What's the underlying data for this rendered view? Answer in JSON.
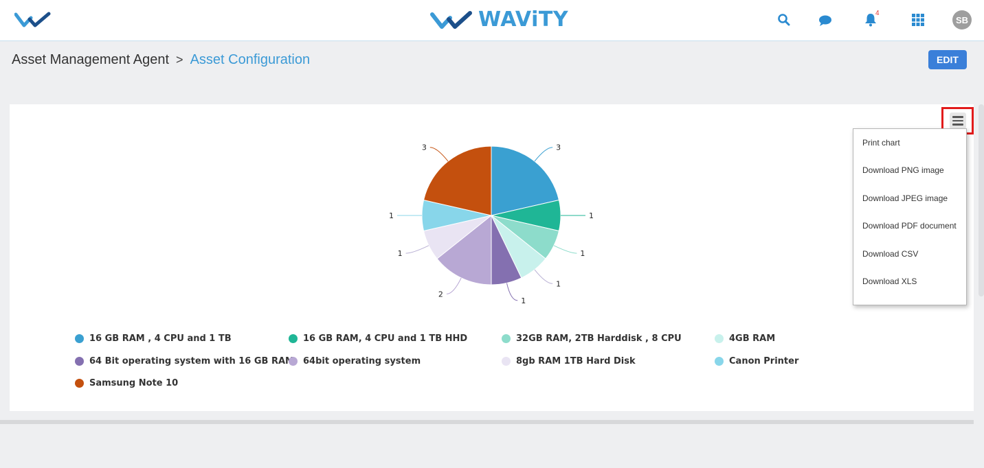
{
  "header": {
    "brand": "WAViTY",
    "notification_count": "4",
    "user_initials": "SB"
  },
  "breadcrumb": {
    "parent": "Asset Management Agent",
    "separator": ">",
    "current": "Asset Configuration"
  },
  "actions": {
    "edit_label": "EDIT"
  },
  "export_menu": {
    "items": [
      "Print chart",
      "Download PNG image",
      "Download JPEG image",
      "Download PDF document",
      "Download CSV",
      "Download XLS"
    ]
  },
  "chart_data": {
    "type": "pie",
    "series": [
      {
        "name": "16 GB RAM , 4 CPU and 1 TB",
        "value": 3,
        "color": "#3aa0d1"
      },
      {
        "name": "16 GB RAM, 4 CPU and 1 TB HHD",
        "value": 1,
        "color": "#1fb696"
      },
      {
        "name": "32GB RAM, 2TB Harddisk , 8 CPU",
        "value": 1,
        "color": "#8ddccb"
      },
      {
        "name": "4GB RAM",
        "value": 1,
        "color": "#c8f1ec"
      },
      {
        "name": "64 Bit operating system with 16 GB RAM",
        "value": 1,
        "color": "#8470b0"
      },
      {
        "name": "64bit operating system",
        "value": 2,
        "color": "#b8a8d4"
      },
      {
        "name": "8gb RAM 1TB Hard Disk",
        "value": 1,
        "color": "#e9e4f3"
      },
      {
        "name": "Canon Printer",
        "value": 1,
        "color": "#88d6ea"
      },
      {
        "name": "Samsung Note 10",
        "value": 3,
        "color": "#c4500e"
      }
    ],
    "legend_position": "bottom"
  }
}
